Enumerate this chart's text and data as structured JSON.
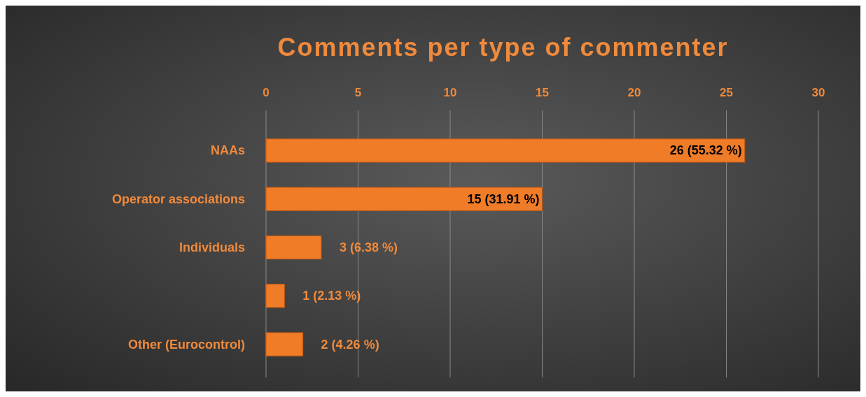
{
  "chart_data": {
    "type": "bar",
    "orientation": "horizontal",
    "title": "Comments per type of commenter",
    "categories": [
      "NAAs",
      "Operator associations",
      "Individuals",
      null,
      "Other (Eurocontrol)"
    ],
    "values": [
      26,
      15,
      3,
      1,
      2
    ],
    "value_labels": [
      "26 (55.32 %)",
      "15 (31.91 %)",
      "3 (6.38 %)",
      "1 (2.13 %)",
      "2 (4.26 %)"
    ],
    "color": "#f07c28",
    "xlim": [
      0,
      30
    ],
    "xticks": [
      0,
      5,
      10,
      15,
      20,
      25,
      30
    ],
    "grid": "x"
  }
}
